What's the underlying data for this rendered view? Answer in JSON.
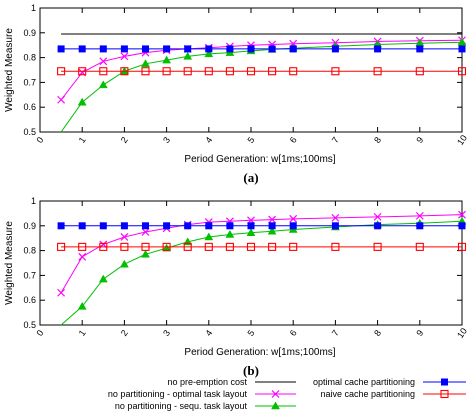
{
  "chart_data": [
    {
      "type": "line",
      "panel_label": "(a)",
      "xlabel": "Period Generation: w[1ms;100ms]",
      "ylabel": "Weighted Measure",
      "xlim": [
        0,
        10
      ],
      "ylim": [
        0.5,
        1
      ],
      "xticks": [
        "0",
        "1",
        "2",
        "3",
        "4",
        "5",
        "6",
        "7",
        "8",
        "9",
        "10"
      ],
      "yticks": [
        "0.5",
        "0.6",
        "0.7",
        "0.8",
        "0.9",
        "1"
      ],
      "grid": false,
      "x": [
        0.5,
        1,
        1.5,
        2,
        2.5,
        3,
        3.5,
        4,
        4.5,
        5,
        5.5,
        6,
        7,
        8,
        9,
        10
      ],
      "series": [
        {
          "name": "no pre-emption cost",
          "color": "#000000",
          "marker": "none",
          "values": [
            0.895,
            0.895,
            0.895,
            0.895,
            0.895,
            0.895,
            0.895,
            0.895,
            0.895,
            0.895,
            0.895,
            0.895,
            0.895,
            0.895,
            0.895,
            0.895
          ]
        },
        {
          "name": "no partitioning - optimal task layout",
          "color": "#ff00ff",
          "marker": "x",
          "values": [
            0.63,
            0.74,
            0.785,
            0.805,
            0.82,
            0.83,
            0.835,
            0.84,
            0.845,
            0.85,
            0.853,
            0.856,
            0.86,
            0.865,
            0.868,
            0.87
          ]
        },
        {
          "name": "no partitioning - sequ. task layout",
          "color": "#00c000",
          "marker": "triangle",
          "values": [
            0.48,
            0.62,
            0.69,
            0.745,
            0.775,
            0.79,
            0.805,
            0.815,
            0.82,
            0.827,
            0.833,
            0.838,
            0.846,
            0.853,
            0.858,
            0.862
          ]
        },
        {
          "name": "optimal cache partitioning",
          "color": "#0000ff",
          "marker": "filled-square",
          "values": [
            0.835,
            0.835,
            0.835,
            0.835,
            0.835,
            0.835,
            0.835,
            0.835,
            0.835,
            0.835,
            0.835,
            0.835,
            0.835,
            0.835,
            0.835,
            0.835
          ]
        },
        {
          "name": "naive cache partitioning",
          "color": "#ff0000",
          "marker": "open-square",
          "values": [
            0.745,
            0.745,
            0.745,
            0.745,
            0.745,
            0.745,
            0.745,
            0.745,
            0.745,
            0.745,
            0.745,
            0.745,
            0.745,
            0.745,
            0.745,
            0.745
          ]
        }
      ]
    },
    {
      "type": "line",
      "panel_label": "(b)",
      "xlabel": "Period Generation: w[1ms;100ms]",
      "ylabel": "Weighted Measure",
      "xlim": [
        0,
        10
      ],
      "ylim": [
        0.5,
        1
      ],
      "xticks": [
        "0",
        "1",
        "2",
        "3",
        "4",
        "5",
        "6",
        "7",
        "8",
        "9",
        "10"
      ],
      "yticks": [
        "0.5",
        "0.6",
        "0.7",
        "0.8",
        "0.9",
        "1"
      ],
      "grid": false,
      "x": [
        0.5,
        1,
        1.5,
        2,
        2.5,
        3,
        3.5,
        4,
        4.5,
        5,
        5.5,
        6,
        7,
        8,
        9,
        10
      ],
      "series": [
        {
          "name": "no pre-emption cost",
          "color": "#000000",
          "marker": "none",
          "values": [
            1.0,
            1.0,
            1.0,
            1.0,
            1.0,
            1.0,
            1.0,
            1.0,
            1.0,
            1.0,
            1.0,
            1.0,
            1.0,
            1.0,
            1.0,
            1.0
          ]
        },
        {
          "name": "no partitioning - optimal task layout",
          "color": "#ff00ff",
          "marker": "x",
          "values": [
            0.63,
            0.775,
            0.825,
            0.855,
            0.875,
            0.89,
            0.905,
            0.915,
            0.918,
            0.922,
            0.925,
            0.928,
            0.932,
            0.936,
            0.94,
            0.945
          ]
        },
        {
          "name": "no partitioning - sequ. task layout",
          "color": "#00c000",
          "marker": "triangle",
          "values": [
            0.48,
            0.575,
            0.685,
            0.745,
            0.785,
            0.81,
            0.835,
            0.855,
            0.865,
            0.872,
            0.878,
            0.885,
            0.895,
            0.905,
            0.91,
            0.918
          ]
        },
        {
          "name": "optimal cache partitioning",
          "color": "#0000ff",
          "marker": "filled-square",
          "values": [
            0.9,
            0.9,
            0.9,
            0.9,
            0.9,
            0.9,
            0.9,
            0.9,
            0.9,
            0.9,
            0.9,
            0.9,
            0.9,
            0.9,
            0.9,
            0.9
          ]
        },
        {
          "name": "naive cache partitioning",
          "color": "#ff0000",
          "marker": "open-square",
          "values": [
            0.815,
            0.815,
            0.815,
            0.815,
            0.815,
            0.815,
            0.815,
            0.815,
            0.815,
            0.815,
            0.815,
            0.815,
            0.815,
            0.815,
            0.815,
            0.815
          ]
        }
      ]
    }
  ],
  "legend": {
    "entries": [
      {
        "label": "no pre-emption cost",
        "color": "#000000",
        "marker": "none"
      },
      {
        "label": "no partitioning - optimal task layout",
        "color": "#ff00ff",
        "marker": "x"
      },
      {
        "label": "no partitioning - sequ. task layout",
        "color": "#00c000",
        "marker": "triangle"
      },
      {
        "label": "optimal cache partitioning",
        "color": "#0000ff",
        "marker": "filled-square"
      },
      {
        "label": "naive cache partitioning",
        "color": "#ff0000",
        "marker": "open-square"
      }
    ]
  }
}
